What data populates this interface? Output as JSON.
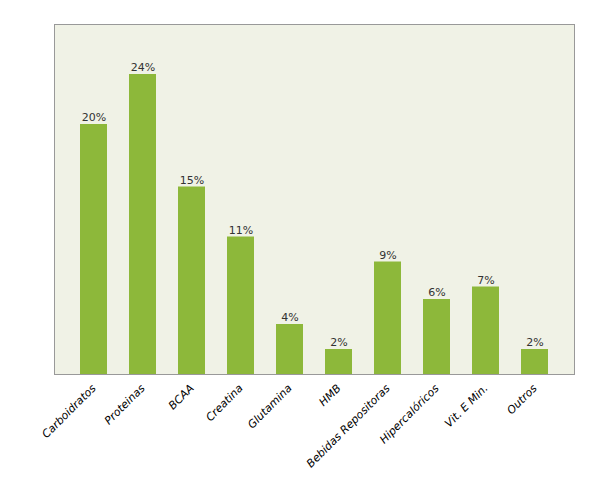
{
  "chart_data": {
    "type": "bar",
    "categories": [
      "Carboidratos",
      "Proteinas",
      "BCAA",
      "Creatina",
      "Glutamina",
      "HMB",
      "Bebidas Repositoras",
      "Hipercalóricos",
      "Vit. E Min.",
      "Outros"
    ],
    "values": [
      20,
      24,
      15,
      11,
      4,
      2,
      9,
      6,
      7,
      2
    ],
    "value_labels": [
      "20%",
      "24%",
      "15%",
      "11%",
      "4%",
      "2%",
      "9%",
      "6%",
      "7%",
      "2%"
    ],
    "color": "#8db83a",
    "ylim": [
      0,
      28
    ],
    "yticks": [],
    "grid": false,
    "data_labels": true,
    "tick_labels": "x"
  }
}
